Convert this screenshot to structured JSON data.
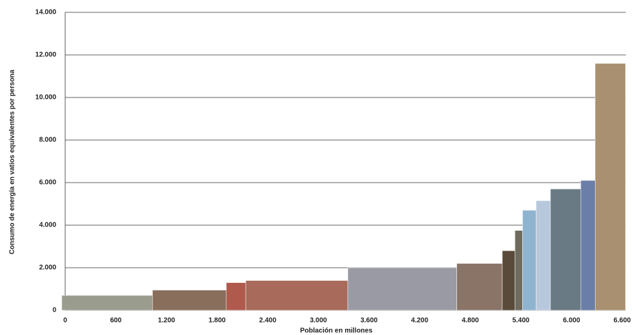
{
  "chart_data": {
    "type": "histogram",
    "xlabel": "Población en millones",
    "ylabel": "Consumo de energía en vatios equivalentes por persona",
    "bins": [
      0,
      1075,
      1950,
      2180,
      3390,
      4680,
      5220,
      5370,
      5460,
      5620,
      5790,
      6150,
      6320,
      6680
    ],
    "values": [
      700,
      950,
      1300,
      1400,
      2000,
      2200,
      2800,
      3750,
      4700,
      5150,
      5700,
      6100,
      11600
    ],
    "colors": [
      "#9a9c8e",
      "#8a6e5c",
      "#b05a4e",
      "#a86a5a",
      "#9a9aa4",
      "#8a7468",
      "#5a4a3a",
      "#6e6a5e",
      "#8fb4d0",
      "#b8c8dc",
      "#6a7a84",
      "#6a7ea8",
      "#a89070"
    ],
    "xlim": [
      0,
      6700
    ],
    "ylim": [
      0,
      14000
    ],
    "xticks": [
      0,
      600,
      {
        "value": 1200,
        "label": "1.200"
      },
      {
        "value": 1800,
        "label": "1.800"
      },
      {
        "value": 2400,
        "label": "2.400"
      },
      {
        "value": 3000,
        "label": "3.000"
      },
      {
        "value": 3600,
        "label": "3.600"
      },
      {
        "value": 4200,
        "label": "4.200"
      },
      {
        "value": 4800,
        "label": "4.800"
      },
      {
        "value": 5400,
        "label": "5.400"
      },
      {
        "value": 6000,
        "label": "6.000"
      },
      {
        "value": 6600,
        "label": "6.600"
      }
    ],
    "yticks": [
      0,
      {
        "value": 2000,
        "label": "2.000"
      },
      {
        "value": 4000,
        "label": "4.000"
      },
      {
        "value": 6000,
        "label": "6.000"
      },
      {
        "value": 8000,
        "label": "8.000"
      },
      {
        "value": 10000,
        "label": "10.000"
      },
      {
        "value": 12000,
        "label": "12.000"
      },
      {
        "value": 14000,
        "label": "14.000"
      }
    ],
    "grid": true
  }
}
